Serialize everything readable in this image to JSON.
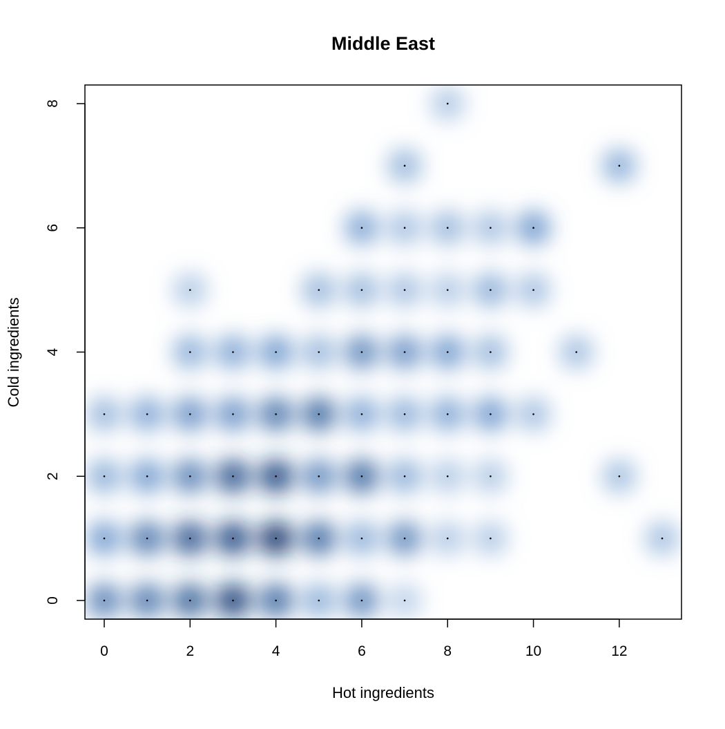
{
  "chart_data": {
    "type": "scatter",
    "subtype": "smoothed-density-scatter",
    "title": "Middle East",
    "xlabel": "Hot ingredients",
    "ylabel": "Cold ingredients",
    "xlim": [
      -0.45,
      13.45
    ],
    "ylim": [
      -0.3,
      8.3
    ],
    "xticks": [
      0,
      2,
      4,
      6,
      8,
      10,
      12
    ],
    "yticks": [
      0,
      2,
      4,
      6,
      8
    ],
    "grid": false,
    "colors": {
      "density_dark": "#08306b",
      "density_mid": "#4a7fc0",
      "density_light": "#c6dbef",
      "point": "#000000"
    },
    "points": [
      {
        "x": 0,
        "y": 0,
        "density": 0.65
      },
      {
        "x": 1,
        "y": 0,
        "density": 0.7
      },
      {
        "x": 2,
        "y": 0,
        "density": 0.8
      },
      {
        "x": 3,
        "y": 0,
        "density": 0.95
      },
      {
        "x": 4,
        "y": 0,
        "density": 0.75
      },
      {
        "x": 5,
        "y": 0,
        "density": 0.4
      },
      {
        "x": 6,
        "y": 0,
        "density": 0.6
      },
      {
        "x": 7,
        "y": 0,
        "density": 0.2
      },
      {
        "x": 0,
        "y": 1,
        "density": 0.5
      },
      {
        "x": 1,
        "y": 1,
        "density": 0.7
      },
      {
        "x": 2,
        "y": 1,
        "density": 0.85
      },
      {
        "x": 3,
        "y": 1,
        "density": 0.9
      },
      {
        "x": 4,
        "y": 1,
        "density": 1.0
      },
      {
        "x": 5,
        "y": 1,
        "density": 0.75
      },
      {
        "x": 6,
        "y": 1,
        "density": 0.4
      },
      {
        "x": 7,
        "y": 1,
        "density": 0.6
      },
      {
        "x": 8,
        "y": 1,
        "density": 0.25
      },
      {
        "x": 9,
        "y": 1,
        "density": 0.25
      },
      {
        "x": 13,
        "y": 1,
        "density": 0.3
      },
      {
        "x": 0,
        "y": 2,
        "density": 0.4
      },
      {
        "x": 1,
        "y": 2,
        "density": 0.5
      },
      {
        "x": 2,
        "y": 2,
        "density": 0.65
      },
      {
        "x": 3,
        "y": 2,
        "density": 0.85
      },
      {
        "x": 4,
        "y": 2,
        "density": 0.9
      },
      {
        "x": 5,
        "y": 2,
        "density": 0.6
      },
      {
        "x": 6,
        "y": 2,
        "density": 0.75
      },
      {
        "x": 7,
        "y": 2,
        "density": 0.4
      },
      {
        "x": 8,
        "y": 2,
        "density": 0.25
      },
      {
        "x": 9,
        "y": 2,
        "density": 0.25
      },
      {
        "x": 12,
        "y": 2,
        "density": 0.3
      },
      {
        "x": 0,
        "y": 3,
        "density": 0.35
      },
      {
        "x": 1,
        "y": 3,
        "density": 0.45
      },
      {
        "x": 2,
        "y": 3,
        "density": 0.55
      },
      {
        "x": 3,
        "y": 3,
        "density": 0.55
      },
      {
        "x": 4,
        "y": 3,
        "density": 0.7
      },
      {
        "x": 5,
        "y": 3,
        "density": 0.75
      },
      {
        "x": 6,
        "y": 3,
        "density": 0.45
      },
      {
        "x": 7,
        "y": 3,
        "density": 0.4
      },
      {
        "x": 8,
        "y": 3,
        "density": 0.45
      },
      {
        "x": 9,
        "y": 3,
        "density": 0.5
      },
      {
        "x": 10,
        "y": 3,
        "density": 0.3
      },
      {
        "x": 2,
        "y": 4,
        "density": 0.4
      },
      {
        "x": 3,
        "y": 4,
        "density": 0.45
      },
      {
        "x": 4,
        "y": 4,
        "density": 0.5
      },
      {
        "x": 5,
        "y": 4,
        "density": 0.35
      },
      {
        "x": 6,
        "y": 4,
        "density": 0.6
      },
      {
        "x": 7,
        "y": 4,
        "density": 0.55
      },
      {
        "x": 8,
        "y": 4,
        "density": 0.5
      },
      {
        "x": 9,
        "y": 4,
        "density": 0.35
      },
      {
        "x": 11,
        "y": 4,
        "density": 0.3
      },
      {
        "x": 2,
        "y": 5,
        "density": 0.25
      },
      {
        "x": 5,
        "y": 5,
        "density": 0.35
      },
      {
        "x": 6,
        "y": 5,
        "density": 0.35
      },
      {
        "x": 7,
        "y": 5,
        "density": 0.3
      },
      {
        "x": 8,
        "y": 5,
        "density": 0.25
      },
      {
        "x": 9,
        "y": 5,
        "density": 0.4
      },
      {
        "x": 10,
        "y": 5,
        "density": 0.3
      },
      {
        "x": 6,
        "y": 6,
        "density": 0.45
      },
      {
        "x": 7,
        "y": 6,
        "density": 0.3
      },
      {
        "x": 8,
        "y": 6,
        "density": 0.35
      },
      {
        "x": 9,
        "y": 6,
        "density": 0.3
      },
      {
        "x": 10,
        "y": 6,
        "density": 0.5
      },
      {
        "x": 7,
        "y": 7,
        "density": 0.35
      },
      {
        "x": 12,
        "y": 7,
        "density": 0.4
      },
      {
        "x": 8,
        "y": 8,
        "density": 0.25
      }
    ]
  }
}
